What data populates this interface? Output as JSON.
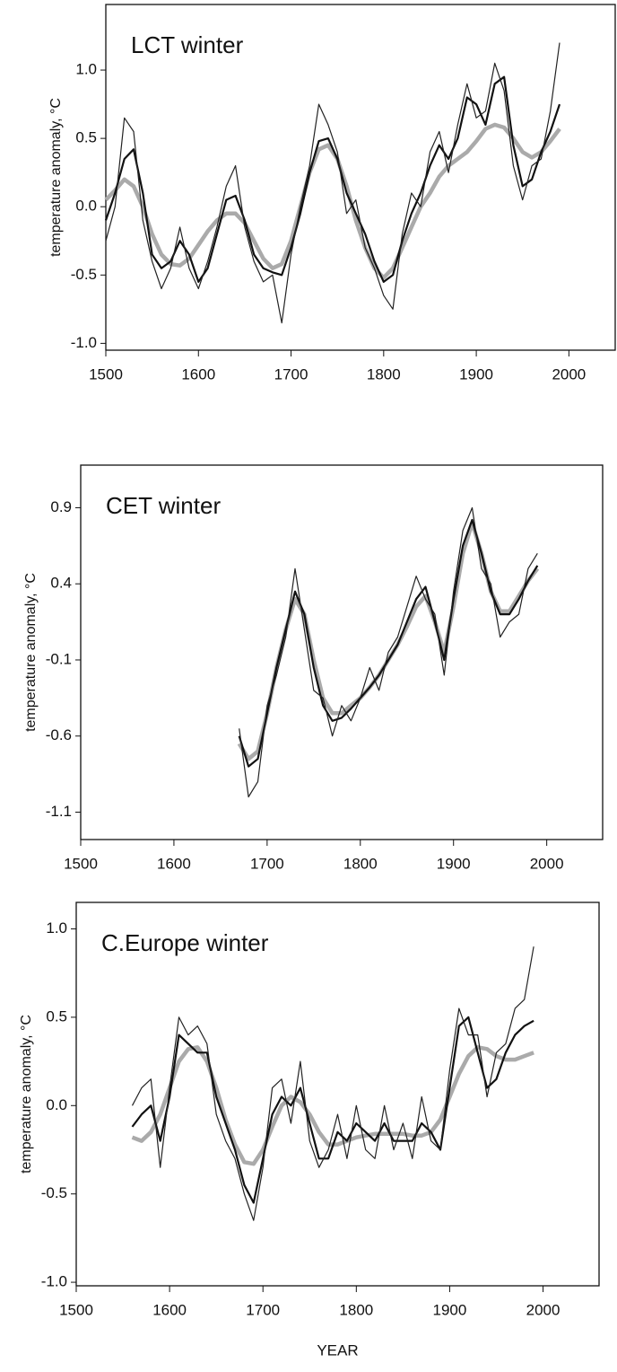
{
  "chart_data": [
    {
      "type": "line",
      "title": "LCT winter",
      "y_label": "temperature anomaly, °C",
      "x": [
        1500,
        1510,
        1520,
        1530,
        1540,
        1550,
        1560,
        1570,
        1580,
        1590,
        1600,
        1610,
        1620,
        1630,
        1640,
        1650,
        1660,
        1670,
        1680,
        1690,
        1700,
        1710,
        1720,
        1730,
        1740,
        1750,
        1760,
        1770,
        1780,
        1790,
        1800,
        1810,
        1820,
        1830,
        1840,
        1850,
        1860,
        1870,
        1880,
        1890,
        1900,
        1910,
        1920,
        1930,
        1940,
        1950,
        1960,
        1970,
        1980,
        1990
      ],
      "series": [
        {
          "color": "#222222",
          "values": [
            -0.25,
            0.0,
            0.65,
            0.55,
            -0.1,
            -0.4,
            -0.6,
            -0.45,
            -0.15,
            -0.45,
            -0.6,
            -0.4,
            -0.15,
            0.15,
            0.3,
            -0.15,
            -0.4,
            -0.55,
            -0.5,
            -0.85,
            -0.35,
            0.0,
            0.3,
            0.75,
            0.6,
            0.4,
            -0.05,
            0.05,
            -0.3,
            -0.45,
            -0.65,
            -0.75,
            -0.2,
            0.1,
            0.0,
            0.4,
            0.55,
            0.25,
            0.6,
            0.9,
            0.65,
            0.7,
            1.05,
            0.85,
            0.3,
            0.05,
            0.3,
            0.35,
            0.7,
            1.2
          ]
        },
        {
          "color": "#111111",
          "values": [
            -0.1,
            0.1,
            0.35,
            0.42,
            0.1,
            -0.35,
            -0.45,
            -0.4,
            -0.25,
            -0.35,
            -0.55,
            -0.45,
            -0.2,
            0.05,
            0.08,
            -0.1,
            -0.35,
            -0.45,
            -0.48,
            -0.5,
            -0.3,
            -0.05,
            0.25,
            0.48,
            0.5,
            0.35,
            0.1,
            -0.05,
            -0.2,
            -0.4,
            -0.55,
            -0.5,
            -0.25,
            -0.05,
            0.1,
            0.3,
            0.45,
            0.35,
            0.5,
            0.8,
            0.75,
            0.6,
            0.9,
            0.95,
            0.45,
            0.15,
            0.2,
            0.4,
            0.55,
            0.75
          ]
        },
        {
          "color": "#aaaaaa",
          "values": [
            0.05,
            0.12,
            0.2,
            0.15,
            0.0,
            -0.2,
            -0.35,
            -0.42,
            -0.43,
            -0.38,
            -0.28,
            -0.18,
            -0.1,
            -0.05,
            -0.05,
            -0.12,
            -0.25,
            -0.38,
            -0.45,
            -0.42,
            -0.25,
            0.0,
            0.25,
            0.42,
            0.45,
            0.35,
            0.15,
            -0.1,
            -0.3,
            -0.45,
            -0.52,
            -0.45,
            -0.3,
            -0.15,
            0.0,
            0.1,
            0.22,
            0.3,
            0.35,
            0.4,
            0.48,
            0.57,
            0.6,
            0.58,
            0.5,
            0.4,
            0.36,
            0.4,
            0.48,
            0.57
          ]
        }
      ],
      "xlim": [
        1500,
        2050
      ],
      "xticks": [
        1500,
        1600,
        1700,
        1800,
        1900,
        2000
      ],
      "ylim": [
        -1.05,
        1.48
      ],
      "yticks": [
        {
          "value": -1,
          "label": "-1.0"
        },
        -0.5,
        {
          "value": 0,
          "label": "0.0"
        },
        0.5,
        {
          "value": 1,
          "label": "1.0"
        }
      ]
    },
    {
      "type": "line",
      "title": "CET winter",
      "y_label": "temperature anomaly, °C",
      "x": [
        1670,
        1680,
        1690,
        1700,
        1710,
        1720,
        1730,
        1740,
        1750,
        1760,
        1770,
        1780,
        1790,
        1800,
        1810,
        1820,
        1830,
        1840,
        1850,
        1860,
        1870,
        1880,
        1890,
        1900,
        1910,
        1920,
        1930,
        1940,
        1950,
        1960,
        1970,
        1980,
        1990
      ],
      "series": [
        {
          "color": "#222222",
          "values": [
            -0.55,
            -1.0,
            -0.9,
            -0.4,
            -0.2,
            0.05,
            0.5,
            0.1,
            -0.3,
            -0.35,
            -0.6,
            -0.4,
            -0.5,
            -0.35,
            -0.15,
            -0.3,
            -0.05,
            0.05,
            0.25,
            0.45,
            0.3,
            0.2,
            -0.2,
            0.35,
            0.75,
            0.9,
            0.5,
            0.4,
            0.05,
            0.15,
            0.2,
            0.5,
            0.6
          ]
        },
        {
          "color": "#111111",
          "values": [
            -0.6,
            -0.8,
            -0.75,
            -0.45,
            -0.15,
            0.1,
            0.35,
            0.2,
            -0.15,
            -0.4,
            -0.5,
            -0.48,
            -0.42,
            -0.35,
            -0.28,
            -0.2,
            -0.1,
            0.0,
            0.15,
            0.3,
            0.38,
            0.15,
            -0.1,
            0.3,
            0.65,
            0.82,
            0.6,
            0.35,
            0.2,
            0.2,
            0.3,
            0.42,
            0.52
          ]
        },
        {
          "color": "#aaaaaa",
          "values": [
            -0.65,
            -0.75,
            -0.7,
            -0.45,
            -0.15,
            0.1,
            0.3,
            0.2,
            -0.1,
            -0.35,
            -0.45,
            -0.45,
            -0.4,
            -0.35,
            -0.28,
            -0.2,
            -0.1,
            0.0,
            0.12,
            0.25,
            0.32,
            0.15,
            -0.05,
            0.25,
            0.6,
            0.8,
            0.6,
            0.35,
            0.22,
            0.22,
            0.32,
            0.42,
            0.5
          ]
        }
      ],
      "xlim": [
        1500,
        2060
      ],
      "xticks": [
        1500,
        1600,
        1700,
        1800,
        1900,
        2000
      ],
      "ylim": [
        -1.28,
        1.18
      ],
      "yticks": [
        -1.1,
        -0.6,
        -0.1,
        0.4,
        0.9
      ]
    },
    {
      "type": "line",
      "title": "C.Europe winter",
      "y_label": "temperature anomaly, °C",
      "x_label": "YEAR",
      "x": [
        1560,
        1570,
        1580,
        1590,
        1600,
        1610,
        1620,
        1630,
        1640,
        1650,
        1660,
        1670,
        1680,
        1690,
        1700,
        1710,
        1720,
        1730,
        1740,
        1750,
        1760,
        1770,
        1780,
        1790,
        1800,
        1810,
        1820,
        1830,
        1840,
        1850,
        1860,
        1870,
        1880,
        1890,
        1900,
        1910,
        1920,
        1930,
        1940,
        1950,
        1960,
        1970,
        1980,
        1990
      ],
      "series": [
        {
          "color": "#222222",
          "values": [
            0.0,
            0.1,
            0.15,
            -0.35,
            0.1,
            0.5,
            0.4,
            0.45,
            0.35,
            -0.05,
            -0.2,
            -0.3,
            -0.5,
            -0.65,
            -0.35,
            0.1,
            0.15,
            -0.1,
            0.25,
            -0.2,
            -0.35,
            -0.25,
            -0.05,
            -0.3,
            0.0,
            -0.25,
            -0.3,
            0.0,
            -0.25,
            -0.1,
            -0.3,
            0.05,
            -0.2,
            -0.25,
            0.2,
            0.55,
            0.4,
            0.4,
            0.05,
            0.3,
            0.35,
            0.55,
            0.6,
            0.9
          ]
        },
        {
          "color": "#111111",
          "values": [
            -0.12,
            -0.05,
            0.0,
            -0.2,
            0.05,
            0.4,
            0.35,
            0.3,
            0.3,
            0.05,
            -0.1,
            -0.25,
            -0.45,
            -0.55,
            -0.3,
            -0.05,
            0.05,
            0.0,
            0.1,
            -0.1,
            -0.3,
            -0.3,
            -0.15,
            -0.2,
            -0.1,
            -0.15,
            -0.2,
            -0.1,
            -0.2,
            -0.2,
            -0.2,
            -0.1,
            -0.15,
            -0.25,
            0.1,
            0.45,
            0.5,
            0.3,
            0.1,
            0.15,
            0.3,
            0.4,
            0.45,
            0.48
          ]
        },
        {
          "color": "#aaaaaa",
          "values": [
            -0.18,
            -0.2,
            -0.15,
            -0.05,
            0.1,
            0.25,
            0.32,
            0.33,
            0.25,
            0.1,
            -0.08,
            -0.22,
            -0.32,
            -0.33,
            -0.25,
            -0.12,
            0.0,
            0.05,
            0.02,
            -0.05,
            -0.15,
            -0.22,
            -0.22,
            -0.2,
            -0.18,
            -0.17,
            -0.16,
            -0.16,
            -0.16,
            -0.16,
            -0.17,
            -0.17,
            -0.15,
            -0.08,
            0.05,
            0.18,
            0.28,
            0.33,
            0.32,
            0.28,
            0.26,
            0.26,
            0.28,
            0.3
          ]
        }
      ],
      "xlim": [
        1500,
        2060
      ],
      "xticks": [
        1500,
        1600,
        1700,
        1800,
        1900,
        2000
      ],
      "ylim": [
        -1.02,
        1.15
      ],
      "yticks": [
        {
          "value": -1,
          "label": "-1.0"
        },
        -0.5,
        {
          "value": 0,
          "label": "0.0"
        },
        0.5,
        {
          "value": 1,
          "label": "1.0"
        }
      ]
    }
  ]
}
